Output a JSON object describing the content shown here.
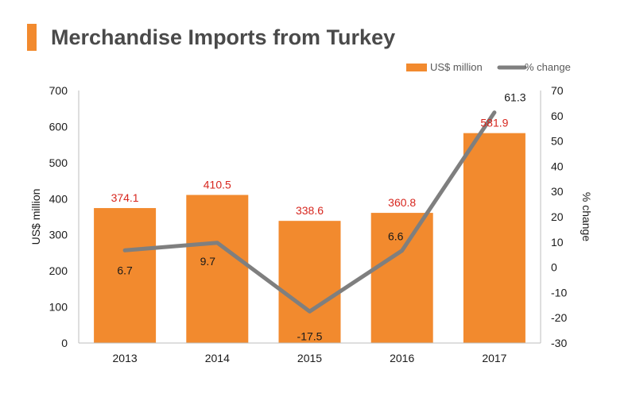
{
  "title": "Merchandise Imports from Turkey",
  "colors": {
    "accent": "#F28A2E",
    "bar": "#F28A2E",
    "line": "#7F7F7F",
    "bar_label": "#D7261E",
    "text": "#1a1a1a",
    "title": "#4a4a4a"
  },
  "chart_data": {
    "type": "bar",
    "categories": [
      "2013",
      "2014",
      "2015",
      "2016",
      "2017"
    ],
    "series": [
      {
        "name": "US$ million",
        "type": "bar",
        "axis": "left",
        "values": [
          374.1,
          410.5,
          338.6,
          360.8,
          581.9
        ],
        "labels": [
          "374.1",
          "410.5",
          "338.6",
          "360.8",
          "581.9"
        ]
      },
      {
        "name": "% change",
        "type": "line",
        "axis": "right",
        "values": [
          6.7,
          9.7,
          -17.5,
          6.6,
          61.3
        ],
        "labels": [
          "6.7",
          "9.7",
          "-17.5",
          "6.6",
          "61.3"
        ]
      }
    ],
    "ylabel": "US$ million",
    "ylabel_right": "% change",
    "ylim": [
      0,
      700
    ],
    "ylim_right": [
      -30,
      70
    ],
    "yticks": [
      "0",
      "100",
      "200",
      "300",
      "400",
      "500",
      "600",
      "700"
    ],
    "yticks_right": [
      "-30",
      "-20",
      "-10",
      "0",
      "10",
      "20",
      "30",
      "40",
      "50",
      "60",
      "70"
    ],
    "legend": "top-right",
    "grid": false
  }
}
